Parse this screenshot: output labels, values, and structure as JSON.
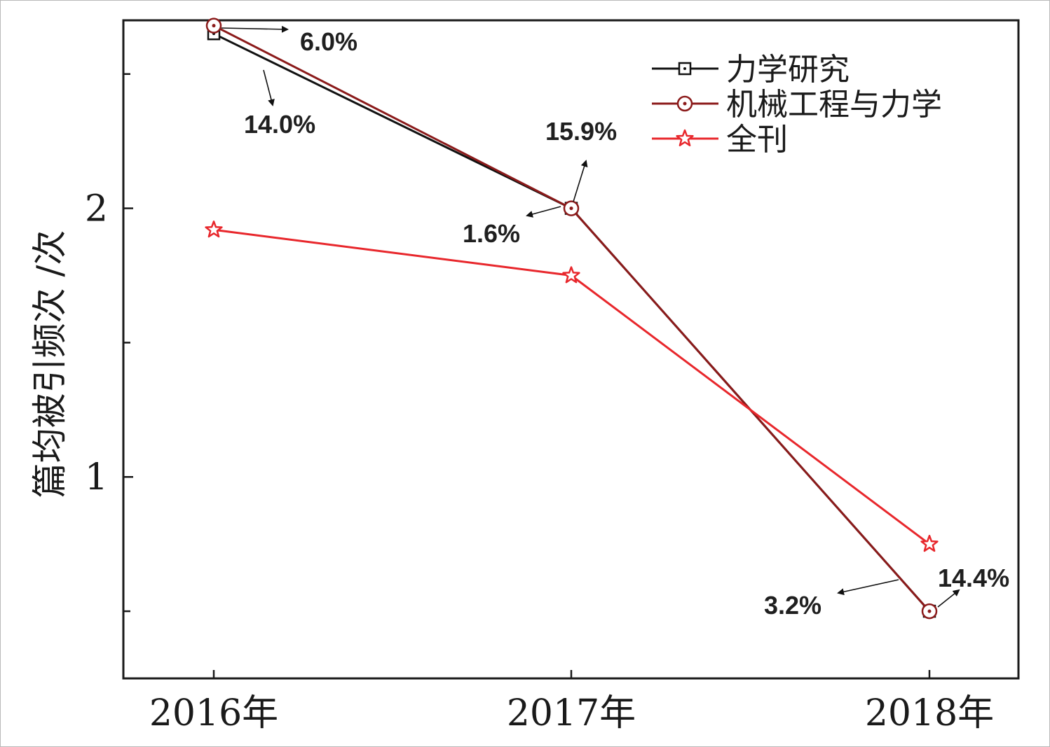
{
  "chart_data": {
    "type": "line",
    "ylabel": "篇均被引频次 /次",
    "xlabel": "",
    "categories": [
      "2016年",
      "2017年",
      "2018年"
    ],
    "yticks": [
      1,
      2
    ],
    "ylim": [
      0.25,
      2.7
    ],
    "grid": false,
    "legend_position": "top-right",
    "series": [
      {
        "name": "力学研究",
        "values": [
          2.65,
          2.0,
          0.5
        ],
        "color": "#111111",
        "marker": "square"
      },
      {
        "name": "机械工程与力学",
        "values": [
          2.68,
          2.0,
          0.5
        ],
        "color": "#8b1a1a",
        "marker": "circle"
      },
      {
        "name": "全刊",
        "values": [
          1.92,
          1.75,
          0.75
        ],
        "color": "#e8272c",
        "marker": "star"
      }
    ],
    "annotations": [
      {
        "text": "6.0%",
        "series": "机械工程与力学",
        "category": "2016年"
      },
      {
        "text": "14.0%",
        "series": "力学研究",
        "category": "2016年"
      },
      {
        "text": "15.9%",
        "series": "机械工程与力学",
        "category": "2017年"
      },
      {
        "text": "1.6%",
        "series": "力学研究",
        "category": "2017年"
      },
      {
        "text": "3.2%",
        "series": "力学研究",
        "category": "2018年"
      },
      {
        "text": "14.4%",
        "series": "机械工程与力学",
        "category": "2018年"
      }
    ]
  }
}
